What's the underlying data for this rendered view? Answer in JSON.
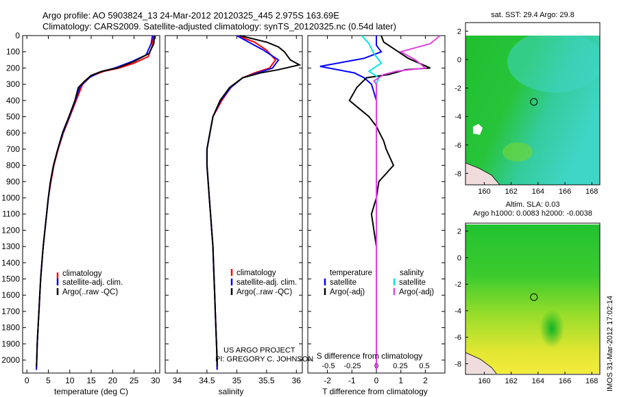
{
  "header": {
    "title_line1": "Argo profile: AO 5903824_13 24-Mar-2012 20120325_445 2.975S 163.69E",
    "title_line2": "Climatology: CARS2009. Satellite-adjusted climatology: synTS_20120325.nc (0.54d later)"
  },
  "credits": {
    "project": "US ARGO PROJECT",
    "pi": "PI: GREGORY C. JOHNSON",
    "stamp": "IMOS 31-Mar-2012 17:02:14"
  },
  "colors": {
    "climatology": "#ff0000",
    "satellite": "#0000ff",
    "argo": "#000000",
    "salinity_satellite": "#00e5e5",
    "salinity_argo": "#e040e0",
    "map_ocean": "#22c232",
    "map_warm": "#36cfb0",
    "map_sla_high": "#f0e030",
    "land": "#f0dcdc"
  },
  "chart_data": [
    {
      "id": "temperature",
      "type": "line",
      "xlabel": "temperature (deg C)",
      "ylabel": "",
      "xlim": [
        -1,
        31
      ],
      "ylim": [
        2080,
        0
      ],
      "xticks": [
        0,
        5,
        10,
        15,
        20,
        25,
        30
      ],
      "yticks": [
        0,
        100,
        200,
        300,
        400,
        500,
        600,
        700,
        800,
        900,
        1000,
        1100,
        1200,
        1300,
        1400,
        1500,
        1600,
        1700,
        1800,
        1900,
        2000
      ],
      "legend": [
        "climatology",
        "satellite-adj. clim.",
        "Argo(..raw -QC)"
      ],
      "series": [
        {
          "name": "climatology",
          "color": "#ff0000",
          "points": [
            [
              29.5,
              0
            ],
            [
              29.3,
              60
            ],
            [
              28.3,
              130
            ],
            [
              25,
              170
            ],
            [
              21.5,
              200
            ],
            [
              18,
              220
            ],
            [
              15,
              250
            ],
            [
              13,
              300
            ],
            [
              11.5,
              400
            ],
            [
              10,
              500
            ],
            [
              8.5,
              600
            ],
            [
              7.3,
              700
            ],
            [
              6.3,
              800
            ],
            [
              5.6,
              900
            ],
            [
              5,
              1000
            ],
            [
              4.6,
              1100
            ],
            [
              4.2,
              1200
            ],
            [
              3.8,
              1300
            ],
            [
              3.5,
              1400
            ],
            [
              3.2,
              1500
            ],
            [
              3,
              1600
            ],
            [
              2.8,
              1700
            ],
            [
              2.6,
              1800
            ],
            [
              2.4,
              1900
            ],
            [
              2.3,
              2000
            ],
            [
              2.2,
              2060
            ]
          ]
        },
        {
          "name": "satellite-adj. clim.",
          "color": "#0000ff",
          "points": [
            [
              29.3,
              0
            ],
            [
              29,
              50
            ],
            [
              27.8,
              120
            ],
            [
              24.5,
              160
            ],
            [
              20.5,
              200
            ],
            [
              17,
              225
            ],
            [
              14.5,
              260
            ],
            [
              12.5,
              310
            ],
            [
              11.3,
              400
            ],
            [
              9.9,
              500
            ],
            [
              8.4,
              600
            ],
            [
              7.2,
              700
            ],
            [
              6.2,
              800
            ],
            [
              5.5,
              900
            ],
            [
              5,
              1000
            ],
            [
              4.6,
              1100
            ],
            [
              4.2,
              1200
            ],
            [
              3.8,
              1300
            ],
            [
              3.5,
              1400
            ],
            [
              3.2,
              1500
            ],
            [
              3,
              1600
            ],
            [
              2.8,
              1700
            ],
            [
              2.6,
              1800
            ],
            [
              2.4,
              1900
            ],
            [
              2.3,
              2000
            ],
            [
              2.2,
              2060
            ]
          ]
        },
        {
          "name": "Argo(..raw -QC)",
          "color": "#000000",
          "points": [
            [
              29.8,
              0
            ],
            [
              29.6,
              50
            ],
            [
              28.5,
              110
            ],
            [
              25,
              160
            ],
            [
              21,
              200
            ],
            [
              17.5,
              220
            ],
            [
              15,
              245
            ],
            [
              13.5,
              280
            ],
            [
              12,
              320
            ],
            [
              11.2,
              400
            ],
            [
              9.8,
              500
            ],
            [
              8.3,
              600
            ],
            [
              7.2,
              700
            ],
            [
              6.2,
              800
            ],
            [
              5.5,
              900
            ],
            [
              5,
              1000
            ],
            [
              4.6,
              1100
            ],
            [
              4.2,
              1200
            ],
            [
              3.8,
              1300
            ],
            [
              3.5,
              1400
            ],
            [
              3.2,
              1500
            ],
            [
              3,
              1600
            ],
            [
              2.8,
              1700
            ],
            [
              2.6,
              1800
            ],
            [
              2.4,
              1900
            ],
            [
              2.3,
              2000
            ],
            [
              2.25,
              2040
            ]
          ]
        }
      ]
    },
    {
      "id": "salinity",
      "type": "line",
      "xlabel": "salinity",
      "ylabel": "",
      "xlim": [
        33.8,
        36.1
      ],
      "ylim": [
        2080,
        0
      ],
      "xticks": [
        34,
        34.5,
        35,
        35.5,
        36
      ],
      "legend": [
        "climatology",
        "satellite-adj. clim.",
        "Argo(..raw -QC)"
      ],
      "series": [
        {
          "name": "climatology",
          "color": "#ff0000",
          "points": [
            [
              35,
              0
            ],
            [
              35.3,
              40
            ],
            [
              35.5,
              90
            ],
            [
              35.65,
              150
            ],
            [
              35.55,
              200
            ],
            [
              35.3,
              230
            ],
            [
              35.1,
              260
            ],
            [
              34.9,
              320
            ],
            [
              34.75,
              400
            ],
            [
              34.6,
              500
            ],
            [
              34.55,
              600
            ],
            [
              34.5,
              700
            ],
            [
              34.5,
              800
            ],
            [
              34.52,
              900
            ],
            [
              34.54,
              1000
            ],
            [
              34.56,
              1100
            ],
            [
              34.58,
              1200
            ],
            [
              34.6,
              1300
            ],
            [
              34.61,
              1400
            ],
            [
              34.62,
              1500
            ],
            [
              34.63,
              1600
            ],
            [
              34.64,
              1700
            ],
            [
              34.65,
              1800
            ],
            [
              34.66,
              1900
            ],
            [
              34.67,
              2000
            ],
            [
              34.67,
              2060
            ]
          ]
        },
        {
          "name": "satellite-adj. clim.",
          "color": "#0000ff",
          "points": [
            [
              35,
              0
            ],
            [
              35.2,
              40
            ],
            [
              35.45,
              90
            ],
            [
              35.7,
              150
            ],
            [
              35.6,
              200
            ],
            [
              35.35,
              230
            ],
            [
              35.1,
              260
            ],
            [
              34.9,
              320
            ],
            [
              34.73,
              400
            ],
            [
              34.6,
              500
            ],
            [
              34.55,
              600
            ],
            [
              34.5,
              700
            ],
            [
              34.5,
              800
            ],
            [
              34.52,
              900
            ],
            [
              34.54,
              1000
            ],
            [
              34.56,
              1100
            ],
            [
              34.58,
              1200
            ],
            [
              34.6,
              1300
            ],
            [
              34.61,
              1400
            ],
            [
              34.62,
              1500
            ],
            [
              34.63,
              1600
            ],
            [
              34.64,
              1700
            ],
            [
              34.65,
              1800
            ],
            [
              34.66,
              1900
            ],
            [
              34.67,
              2000
            ],
            [
              34.67,
              2060
            ]
          ]
        },
        {
          "name": "Argo(..raw -QC)",
          "color": "#000000",
          "points": [
            [
              35.05,
              0
            ],
            [
              35.5,
              40
            ],
            [
              35.7,
              70
            ],
            [
              35.8,
              100
            ],
            [
              35.9,
              150
            ],
            [
              36.05,
              180
            ],
            [
              35.7,
              210
            ],
            [
              35.4,
              230
            ],
            [
              35.1,
              260
            ],
            [
              34.88,
              320
            ],
            [
              34.72,
              400
            ],
            [
              34.6,
              500
            ],
            [
              34.55,
              600
            ],
            [
              34.5,
              700
            ],
            [
              34.5,
              800
            ],
            [
              34.52,
              900
            ],
            [
              34.54,
              1000
            ],
            [
              34.56,
              1100
            ],
            [
              34.58,
              1200
            ],
            [
              34.6,
              1300
            ],
            [
              34.61,
              1400
            ],
            [
              34.62,
              1500
            ],
            [
              34.63,
              1600
            ],
            [
              34.64,
              1700
            ],
            [
              34.65,
              1800
            ],
            [
              34.66,
              1900
            ],
            [
              34.67,
              2000
            ],
            [
              34.67,
              2040
            ]
          ]
        }
      ]
    },
    {
      "id": "differences",
      "type": "line",
      "xlabel": "T difference from climatology",
      "ylabel": "",
      "secondary_xlabel": "S difference from climatology",
      "xlim": [
        -2.8,
        2.8
      ],
      "ylim": [
        2080,
        0
      ],
      "xticks": [
        -2,
        -1,
        0,
        1,
        2
      ],
      "secondary_xticks": [
        "-0.5",
        "-0.25",
        "0",
        "0.25",
        "0.5"
      ],
      "legend": {
        "temperature": "temperature",
        "salinity": "salinity",
        "t_satellite": "satellite",
        "t_argo": "Argo(-adj)",
        "s_satellite": "satellite",
        "s_argo": "Argo(-adj)"
      },
      "series": [
        {
          "name": "T satellite",
          "color": "#0000ff",
          "points": [
            [
              0,
              0
            ],
            [
              0,
              60
            ],
            [
              0.2,
              100
            ],
            [
              -0.5,
              140
            ],
            [
              -2.3,
              190
            ],
            [
              -0.9,
              230
            ],
            [
              -0.5,
              260
            ],
            [
              -0.2,
              300
            ],
            [
              0,
              400
            ],
            [
              0,
              2060
            ]
          ]
        },
        {
          "name": "T Argo(-adj)",
          "color": "#000000",
          "points": [
            [
              0.2,
              0
            ],
            [
              0.3,
              40
            ],
            [
              0.8,
              90
            ],
            [
              1.3,
              140
            ],
            [
              2.2,
              200
            ],
            [
              1.2,
              210
            ],
            [
              0.5,
              240
            ],
            [
              -0.4,
              260
            ],
            [
              -0.8,
              320
            ],
            [
              -1.1,
              400
            ],
            [
              -0.7,
              450
            ],
            [
              -0.3,
              500
            ],
            [
              0,
              560
            ],
            [
              0.3,
              650
            ],
            [
              0.4,
              700
            ],
            [
              0.7,
              800
            ],
            [
              0.4,
              850
            ],
            [
              0.1,
              900
            ],
            [
              0,
              1000
            ],
            [
              -0.2,
              1100
            ],
            [
              -0.1,
              1200
            ],
            [
              0,
              1300
            ],
            [
              0,
              1400
            ],
            [
              0,
              1500
            ],
            [
              0,
              1600
            ],
            [
              0,
              1700
            ],
            [
              0,
              1800
            ],
            [
              0,
              1900
            ],
            [
              0,
              2000
            ],
            [
              0,
              2040
            ]
          ]
        },
        {
          "name": "S satellite",
          "color": "#00e5e5",
          "points": [
            [
              -0.6,
              0
            ],
            [
              -0.3,
              50
            ],
            [
              -0.1,
              110
            ],
            [
              0.2,
              170
            ],
            [
              -0.3,
              220
            ],
            [
              0.1,
              260
            ],
            [
              0,
              300
            ],
            [
              0,
              2060
            ]
          ]
        },
        {
          "name": "S Argo(-adj)",
          "color": "#e040e0",
          "points": [
            [
              2.6,
              0
            ],
            [
              2.2,
              50
            ],
            [
              1,
              100
            ],
            [
              1.6,
              150
            ],
            [
              2,
              200
            ],
            [
              0.8,
              220
            ],
            [
              0.3,
              240
            ],
            [
              -0.1,
              280
            ],
            [
              0,
              300
            ],
            [
              0,
              2060
            ]
          ]
        }
      ]
    },
    {
      "id": "sst_map",
      "type": "heatmap",
      "title": "sat. SST: 29.4  Argo: 29.8",
      "xlim": [
        158.6,
        168.6
      ],
      "ylim": [
        -8.8,
        2.6
      ],
      "xticks": [
        160,
        162,
        164,
        166,
        168
      ],
      "yticks": [
        2,
        0,
        -2,
        -4,
        -6,
        -8
      ],
      "marker": {
        "lon": 163.69,
        "lat": -2.975
      }
    },
    {
      "id": "sla_map",
      "type": "heatmap",
      "title": "Altim. SLA: 0.03",
      "subtitle": "Argo h1000: 0.0083 h2000: -0.0038",
      "xlim": [
        158.6,
        168.6
      ],
      "ylim": [
        -8.8,
        2.6
      ],
      "xticks": [
        160,
        162,
        164,
        166,
        168
      ],
      "yticks": [
        2,
        0,
        -2,
        -4,
        -6,
        -8
      ],
      "marker": {
        "lon": 163.69,
        "lat": -2.975
      }
    }
  ]
}
